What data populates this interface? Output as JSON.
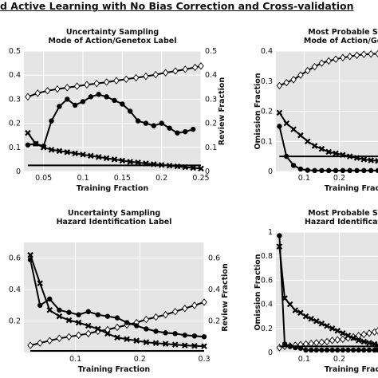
{
  "figure_title": "d Active Learning with No Bias Correction and Cross-validation",
  "chart_data": [
    {
      "type": "line",
      "title": [
        "Uncertainty Sampling",
        "Mode of Action/Genetox Label"
      ],
      "xlabel": "Training Fraction",
      "ylabel_left": "",
      "ylabel_right": "Review Fraction",
      "xlim": [
        0.025,
        0.25
      ],
      "ylim": [
        0,
        0.5
      ],
      "xticks": [
        0.05,
        0.1,
        0.15,
        0.2,
        0.25
      ],
      "xtick_labels": [
        "0.05",
        "0.1",
        "0.15",
        "0.2",
        "0.25"
      ],
      "yticks": [
        0,
        0.1,
        0.2,
        0.3,
        0.4,
        0.5
      ],
      "ytick_labels": [
        "0",
        "0.1",
        "0.2",
        "0.3",
        "0.4",
        "0.5"
      ],
      "right_ticks": [
        "0",
        "0.1",
        "0.2",
        "0.3",
        "0.4",
        "0.5"
      ],
      "grid": true,
      "series": [
        {
          "marker": "diamond",
          "x": [
            0.03,
            0.0425,
            0.055,
            0.0675,
            0.08,
            0.0925,
            0.105,
            0.1175,
            0.13,
            0.1425,
            0.155,
            0.1675,
            0.18,
            0.1925,
            0.205,
            0.2175,
            0.23,
            0.2425,
            0.25
          ],
          "values": [
            0.31,
            0.325,
            0.335,
            0.342,
            0.348,
            0.354,
            0.36,
            0.365,
            0.371,
            0.377,
            0.383,
            0.389,
            0.395,
            0.402,
            0.41,
            0.417,
            0.424,
            0.432,
            0.438
          ]
        },
        {
          "marker": "circle",
          "x": [
            0.03,
            0.04,
            0.05,
            0.06,
            0.07,
            0.08,
            0.09,
            0.1,
            0.11,
            0.12,
            0.13,
            0.14,
            0.15,
            0.16,
            0.17,
            0.18,
            0.19,
            0.2,
            0.21,
            0.22,
            0.23,
            0.24
          ],
          "values": [
            0.11,
            0.115,
            0.105,
            0.21,
            0.27,
            0.3,
            0.275,
            0.29,
            0.31,
            0.32,
            0.31,
            0.295,
            0.28,
            0.25,
            0.21,
            0.2,
            0.19,
            0.2,
            0.18,
            0.16,
            0.165,
            0.175
          ]
        },
        {
          "marker": "x",
          "x": [
            0.03,
            0.04,
            0.05,
            0.06,
            0.07,
            0.08,
            0.09,
            0.1,
            0.11,
            0.12,
            0.13,
            0.14,
            0.15,
            0.16,
            0.17,
            0.18,
            0.19,
            0.2,
            0.21,
            0.22,
            0.23,
            0.24,
            0.25
          ],
          "values": [
            0.16,
            0.115,
            0.1,
            0.09,
            0.085,
            0.08,
            0.075,
            0.07,
            0.065,
            0.06,
            0.055,
            0.05,
            0.045,
            0.04,
            0.037,
            0.033,
            0.03,
            0.027,
            0.024,
            0.021,
            0.018,
            0.015,
            0.012
          ]
        },
        {
          "marker": "none",
          "x": [
            0.03,
            0.25
          ],
          "values": [
            0.025,
            0.025
          ]
        }
      ]
    },
    {
      "type": "line",
      "title": [
        "Most Probable S",
        "Mode of Action/Ge"
      ],
      "xlabel": "Training Fraction",
      "ylabel_left": "Omission Fraction",
      "ylabel_right": "",
      "xlim": [
        0.02,
        0.31
      ],
      "ylim": [
        0,
        0.4
      ],
      "xticks": [
        0.1,
        0.2
      ],
      "xtick_labels": [
        "0.1",
        "0.2"
      ],
      "yticks": [
        0,
        0.1,
        0.2,
        0.3,
        0.4
      ],
      "ytick_labels": [
        "0",
        "0.1",
        "0.2",
        "0.3",
        "0.4"
      ],
      "right_ticks": [],
      "grid": true,
      "series": [
        {
          "marker": "diamond",
          "x": [
            0.03,
            0.05,
            0.07,
            0.09,
            0.11,
            0.13,
            0.15,
            0.17,
            0.19,
            0.21,
            0.23,
            0.25,
            0.27,
            0.29,
            0.31
          ],
          "values": [
            0.285,
            0.295,
            0.305,
            0.32,
            0.335,
            0.348,
            0.36,
            0.367,
            0.373,
            0.378,
            0.382,
            0.386,
            0.389,
            0.39,
            0.391
          ]
        },
        {
          "marker": "circle",
          "x": [
            0.03,
            0.05,
            0.07,
            0.09,
            0.11,
            0.13,
            0.15,
            0.17,
            0.19,
            0.21,
            0.23,
            0.25,
            0.27,
            0.29,
            0.31
          ],
          "values": [
            0.15,
            0.05,
            0.02,
            0.008,
            0.004,
            0.003,
            0.003,
            0.003,
            0.003,
            0.003,
            0.003,
            0.003,
            0.003,
            0.003,
            0.003
          ]
        },
        {
          "marker": "x",
          "x": [
            0.03,
            0.05,
            0.07,
            0.09,
            0.11,
            0.13,
            0.15,
            0.17,
            0.19,
            0.21,
            0.23,
            0.25,
            0.27,
            0.29,
            0.31
          ],
          "values": [
            0.195,
            0.16,
            0.14,
            0.12,
            0.1,
            0.085,
            0.075,
            0.065,
            0.06,
            0.055,
            0.05,
            0.045,
            0.04,
            0.037,
            0.035
          ]
        },
        {
          "marker": "none",
          "x": [
            0.03,
            0.31
          ],
          "values": [
            0.05,
            0.05
          ]
        }
      ]
    },
    {
      "type": "line",
      "title": [
        "Uncertainty Sampling",
        "Hazard Identification Label"
      ],
      "xlabel": "Training Fraction",
      "ylabel_left": "",
      "ylabel_right": "Review Fraction",
      "xlim": [
        0.02,
        0.3
      ],
      "ylim": [
        0,
        0.7
      ],
      "xticks": [
        0.1,
        0.2,
        0.3
      ],
      "xtick_labels": [
        "0.1",
        "0.2",
        "0.3"
      ],
      "yticks": [
        0.2,
        0.4,
        0.6
      ],
      "ytick_labels": [
        "0.2",
        "0.4",
        "0.6"
      ],
      "right_ticks": [
        "0.2",
        "0.4",
        "0.6"
      ],
      "grid": true,
      "series": [
        {
          "marker": "diamond",
          "x": [
            0.03,
            0.045,
            0.06,
            0.075,
            0.09,
            0.105,
            0.12,
            0.135,
            0.15,
            0.165,
            0.18,
            0.195,
            0.21,
            0.225,
            0.24,
            0.255,
            0.27,
            0.285,
            0.3
          ],
          "values": [
            0.045,
            0.06,
            0.075,
            0.09,
            0.1,
            0.11,
            0.12,
            0.135,
            0.145,
            0.16,
            0.175,
            0.19,
            0.21,
            0.225,
            0.24,
            0.26,
            0.28,
            0.3,
            0.32
          ]
        },
        {
          "marker": "circle",
          "x": [
            0.03,
            0.045,
            0.06,
            0.075,
            0.09,
            0.105,
            0.12,
            0.135,
            0.15,
            0.165,
            0.18,
            0.195,
            0.21,
            0.225,
            0.24,
            0.255,
            0.27,
            0.285,
            0.3
          ],
          "values": [
            0.59,
            0.3,
            0.34,
            0.27,
            0.255,
            0.24,
            0.26,
            0.24,
            0.23,
            0.22,
            0.19,
            0.17,
            0.15,
            0.135,
            0.125,
            0.12,
            0.11,
            0.105,
            0.1
          ]
        },
        {
          "marker": "x",
          "x": [
            0.03,
            0.045,
            0.06,
            0.075,
            0.09,
            0.105,
            0.12,
            0.135,
            0.15,
            0.165,
            0.18,
            0.195,
            0.21,
            0.225,
            0.24,
            0.255,
            0.27,
            0.285,
            0.3
          ],
          "values": [
            0.62,
            0.44,
            0.27,
            0.23,
            0.205,
            0.19,
            0.17,
            0.15,
            0.12,
            0.095,
            0.085,
            0.075,
            0.065,
            0.06,
            0.055,
            0.05,
            0.045,
            0.042,
            0.04
          ]
        },
        {
          "marker": "none",
          "x": [
            0.03,
            0.3
          ],
          "values": [
            0.01,
            0.01
          ]
        }
      ]
    },
    {
      "type": "line",
      "title": [
        "Most Probable S",
        "Hazard Identificat"
      ],
      "xlabel": "Training Fraction",
      "ylabel_left": "Omission Fraction",
      "ylabel_right": "",
      "xlim": [
        0.02,
        0.31
      ],
      "ylim": [
        0,
        1.0
      ],
      "xticks": [
        0.1,
        0.2
      ],
      "xtick_labels": [
        "0.1",
        "0.2"
      ],
      "yticks": [
        0,
        0.2,
        0.4,
        0.6,
        0.8,
        1
      ],
      "ytick_labels": [
        "0",
        "0.2",
        "0.4",
        "0.6",
        "0.8",
        "1"
      ],
      "right_ticks": [],
      "grid": true,
      "series": [
        {
          "marker": "diamond",
          "x": [
            0.03,
            0.045,
            0.06,
            0.075,
            0.09,
            0.105,
            0.12,
            0.135,
            0.15,
            0.165,
            0.18,
            0.195,
            0.21,
            0.225,
            0.24,
            0.255,
            0.27,
            0.285,
            0.3,
            0.31
          ],
          "values": [
            0.04,
            0.05,
            0.055,
            0.06,
            0.065,
            0.07,
            0.075,
            0.08,
            0.085,
            0.09,
            0.1,
            0.105,
            0.11,
            0.12,
            0.13,
            0.14,
            0.15,
            0.16,
            0.17,
            0.18
          ]
        },
        {
          "marker": "circle",
          "x": [
            0.03,
            0.045,
            0.06,
            0.075,
            0.09,
            0.105,
            0.12,
            0.135,
            0.15,
            0.165,
            0.18,
            0.195,
            0.21,
            0.225,
            0.24,
            0.255,
            0.27,
            0.285,
            0.3,
            0.31
          ],
          "values": [
            0.97,
            0.07,
            0.05,
            0.04,
            0.035,
            0.02,
            0.02,
            0.02,
            0.02,
            0.02,
            0.02,
            0.02,
            0.02,
            0.02,
            0.02,
            0.02,
            0.02,
            0.02,
            0.02,
            0.02
          ]
        },
        {
          "marker": "x",
          "x": [
            0.03,
            0.045,
            0.06,
            0.075,
            0.09,
            0.105,
            0.12,
            0.135,
            0.15,
            0.165,
            0.18,
            0.195,
            0.21,
            0.225,
            0.24,
            0.255,
            0.27,
            0.285,
            0.3,
            0.31
          ],
          "values": [
            0.88,
            0.45,
            0.4,
            0.35,
            0.33,
            0.3,
            0.28,
            0.26,
            0.24,
            0.22,
            0.2,
            0.18,
            0.16,
            0.14,
            0.12,
            0.1,
            0.09,
            0.08,
            0.07,
            0.06
          ]
        },
        {
          "marker": "none",
          "x": [
            0.03,
            0.31
          ],
          "values": [
            0.05,
            0.05
          ]
        }
      ]
    }
  ]
}
